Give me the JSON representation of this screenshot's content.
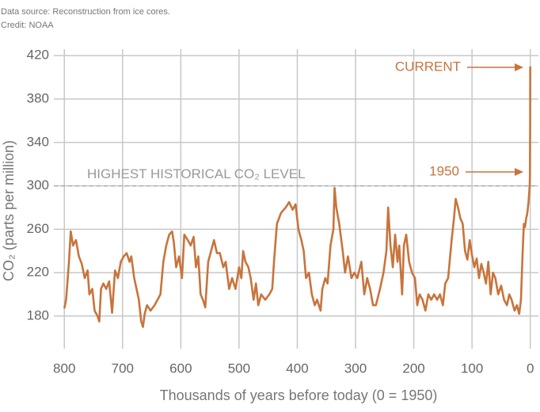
{
  "chart_data": {
    "type": "line",
    "source": "Data source: Reconstruction from ice cores.",
    "credit": "Credit: NOAA",
    "x_label": "Thousands of years before today (0 = 1950)",
    "y_label": "CO₂ (parts per million)",
    "color": "#c8743c",
    "grid": true,
    "xlim": [
      818,
      -14
    ],
    "ylim": [
      150,
      426
    ],
    "xticks": [
      800,
      700,
      600,
      500,
      400,
      300,
      200,
      100,
      0
    ],
    "yticks": [
      180,
      220,
      260,
      300,
      340,
      380,
      420
    ],
    "reference_line": {
      "value": 300,
      "label": "HIGHEST HISTORICAL CO₂ LEVEL"
    },
    "annotations": [
      {
        "text": "CURRENT",
        "y": 410
      },
      {
        "text": "1950",
        "y": 310
      }
    ],
    "x": [
      800,
      797,
      792,
      789,
      785,
      780,
      775,
      770,
      765,
      760,
      757,
      752,
      748,
      743,
      740,
      737,
      733,
      728,
      723,
      718,
      713,
      708,
      703,
      698,
      693,
      688,
      685,
      680,
      676,
      672,
      668,
      665,
      662,
      658,
      652,
      645,
      640,
      635,
      630,
      625,
      620,
      615,
      612,
      608,
      603,
      598,
      594,
      588,
      583,
      578,
      574,
      570,
      566,
      562,
      558,
      553,
      548,
      543,
      538,
      533,
      527,
      523,
      517,
      512,
      506,
      500,
      496,
      493,
      489,
      484,
      480,
      475,
      471,
      467,
      462,
      455,
      448,
      443,
      440,
      435,
      428,
      420,
      414,
      408,
      403,
      398,
      393,
      389,
      385,
      380,
      375,
      370,
      366,
      360,
      357,
      352,
      348,
      343,
      338,
      336,
      333,
      328,
      322,
      318,
      313,
      307,
      302,
      297,
      290,
      285,
      280,
      275,
      270,
      265,
      258,
      252,
      247,
      244,
      240,
      236,
      232,
      228,
      225,
      220,
      217,
      213,
      208,
      203,
      198,
      194,
      190,
      185,
      180,
      175,
      170,
      165,
      160,
      155,
      150,
      146,
      141,
      135,
      131,
      128,
      124,
      120,
      116,
      112,
      108,
      104,
      100,
      96,
      92,
      88,
      84,
      80,
      76,
      72,
      68,
      64,
      60,
      55,
      50,
      45,
      40,
      36,
      32,
      27,
      23,
      19,
      16,
      13,
      11,
      9,
      7,
      5,
      3,
      1,
      0.5,
      0.2,
      0.08,
      0
    ],
    "values": [
      187,
      195,
      230,
      258,
      245,
      250,
      235,
      228,
      215,
      222,
      200,
      205,
      185,
      180,
      175,
      205,
      210,
      205,
      212,
      183,
      222,
      215,
      230,
      235,
      238,
      230,
      235,
      215,
      205,
      195,
      175,
      170,
      182,
      190,
      185,
      190,
      195,
      200,
      230,
      245,
      255,
      258,
      248,
      225,
      235,
      215,
      255,
      250,
      245,
      253,
      225,
      235,
      200,
      195,
      188,
      230,
      240,
      250,
      238,
      238,
      225,
      230,
      205,
      215,
      205,
      225,
      215,
      240,
      230,
      225,
      215,
      195,
      210,
      190,
      200,
      195,
      200,
      205,
      230,
      265,
      275,
      280,
      285,
      278,
      283,
      260,
      250,
      240,
      215,
      220,
      200,
      190,
      195,
      185,
      205,
      215,
      210,
      245,
      260,
      298,
      280,
      265,
      240,
      220,
      235,
      215,
      220,
      215,
      230,
      200,
      215,
      205,
      190,
      190,
      205,
      220,
      240,
      280,
      245,
      225,
      255,
      230,
      245,
      200,
      245,
      255,
      230,
      220,
      215,
      190,
      200,
      195,
      185,
      200,
      195,
      200,
      195,
      200,
      190,
      210,
      215,
      250,
      270,
      288,
      280,
      270,
      265,
      240,
      232,
      250,
      236,
      225,
      233,
      215,
      228,
      220,
      210,
      230,
      200,
      220,
      215,
      200,
      208,
      195,
      190,
      200,
      195,
      185,
      190,
      182,
      195,
      240,
      265,
      262,
      270,
      275,
      285,
      300,
      310,
      350,
      380,
      410
    ]
  }
}
